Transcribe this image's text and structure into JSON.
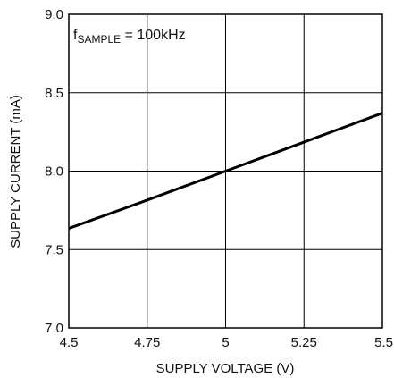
{
  "chart_data": {
    "type": "line",
    "xlabel": "SUPPLY VOLTAGE (V)",
    "ylabel": "SUPPLY CURRENT (mA)",
    "xlim": [
      4.5,
      5.5
    ],
    "ylim": [
      7.0,
      9.0
    ],
    "x_ticks": [
      4.5,
      4.75,
      5.0,
      5.25,
      5.5
    ],
    "x_tick_labels": [
      "4.5",
      "4.75",
      "5",
      "5.25",
      "5.5"
    ],
    "y_ticks": [
      7.0,
      7.5,
      8.0,
      8.5,
      9.0
    ],
    "y_tick_labels": [
      "7.0",
      "7.5",
      "8.0",
      "8.5",
      "9.0"
    ],
    "grid": true,
    "annotation": {
      "prefix": "f",
      "subscript": "SAMPLE",
      "suffix": " = 100kHz"
    },
    "series": [
      {
        "x": [
          4.5,
          4.75,
          5.0,
          5.25,
          5.5
        ],
        "y": [
          7.635,
          7.815,
          8.0,
          8.185,
          8.37
        ],
        "color": "#000000"
      }
    ]
  }
}
